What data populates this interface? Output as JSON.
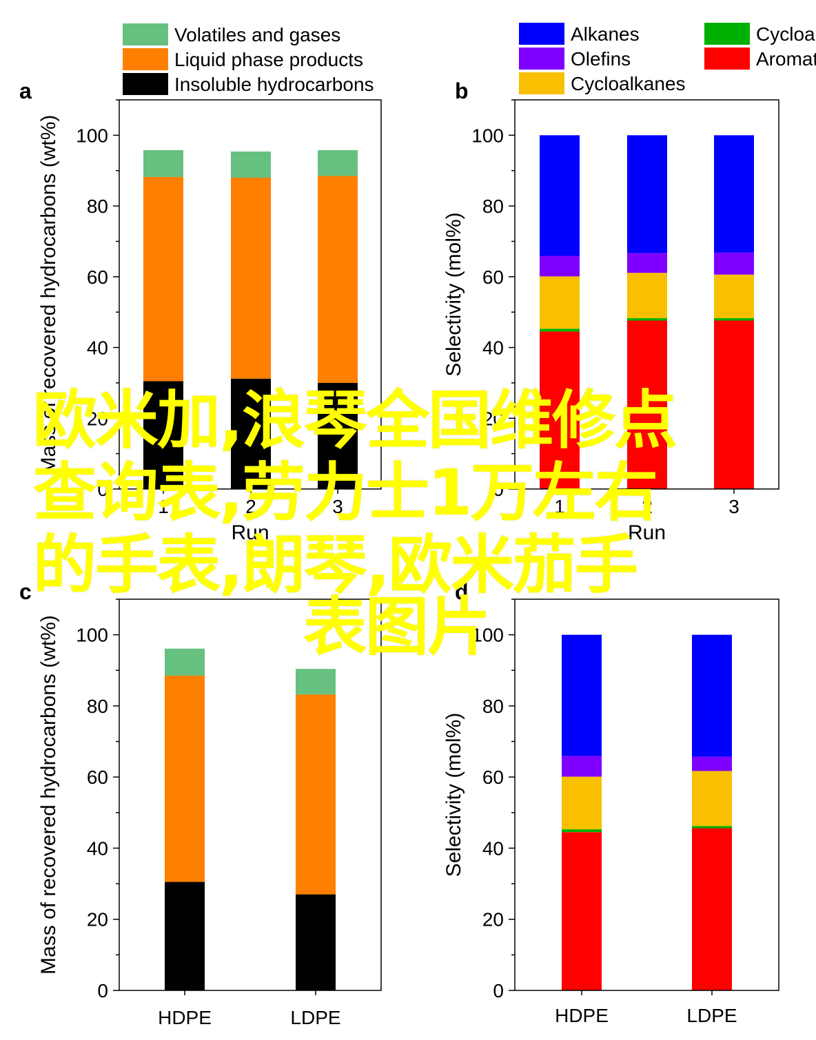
{
  "chart_data": [
    {
      "panel_label": "a",
      "type": "bar",
      "stacked": true,
      "categories": [
        "1",
        "2",
        "3"
      ],
      "xlabel": "Run",
      "ylabel": "Mass of recovered hydrocarbons (wt%)",
      "ylim": [
        0,
        110
      ],
      "yticks": [
        0,
        20,
        40,
        60,
        80,
        100
      ],
      "legend": "top",
      "series": [
        {
          "name": "Insoluble hydrocarbons",
          "color": "#000000",
          "values": [
            30.5,
            31.2,
            30.0
          ]
        },
        {
          "name": "Liquid phase products",
          "color": "#ff7f00",
          "values": [
            57.7,
            56.8,
            58.5
          ]
        },
        {
          "name": "Volatiles and gases",
          "color": "#66c080",
          "values": [
            7.6,
            7.4,
            7.3
          ]
        }
      ]
    },
    {
      "panel_label": "b",
      "type": "bar",
      "stacked": true,
      "categories": [
        "1",
        "2",
        "3"
      ],
      "xlabel": "Run",
      "ylabel": "Selectivity (mol%)",
      "ylim": [
        0,
        110
      ],
      "yticks": [
        0,
        20,
        40,
        60,
        80,
        100
      ],
      "legend": "top",
      "series": [
        {
          "name": "Aromatics",
          "color": "#ff0000",
          "values": [
            44.5,
            47.6,
            47.6
          ]
        },
        {
          "name": "Cycloalkenes",
          "color": "#00b000",
          "values": [
            0.8,
            0.7,
            0.7
          ]
        },
        {
          "name": "Cycloalkanes",
          "color": "#f8c000",
          "values": [
            14.8,
            12.8,
            12.3
          ]
        },
        {
          "name": "Olefins",
          "color": "#8000ff",
          "values": [
            5.8,
            5.6,
            6.2
          ]
        },
        {
          "name": "Alkanes",
          "color": "#0000ff",
          "values": [
            34.1,
            33.3,
            33.2
          ]
        }
      ]
    },
    {
      "panel_label": "c",
      "type": "bar",
      "stacked": true,
      "categories": [
        "HDPE",
        "LDPE"
      ],
      "xlabel": "",
      "ylabel": "Mass of recovered hydrocarbons (wt%)",
      "ylim": [
        0,
        110
      ],
      "yticks": [
        0,
        20,
        40,
        60,
        80,
        100
      ],
      "series": [
        {
          "name": "Insoluble hydrocarbons",
          "color": "#000000",
          "values": [
            30.5,
            27.0
          ]
        },
        {
          "name": "Liquid phase products",
          "color": "#ff7f00",
          "values": [
            58.0,
            56.2
          ]
        },
        {
          "name": "Volatiles and gases",
          "color": "#66c080",
          "values": [
            7.6,
            7.2
          ]
        }
      ]
    },
    {
      "panel_label": "d",
      "type": "bar",
      "stacked": true,
      "categories": [
        "HDPE",
        "LDPE"
      ],
      "xlabel": "",
      "ylabel": "Selectivity (mol%)",
      "ylim": [
        0,
        110
      ],
      "yticks": [
        0,
        20,
        40,
        60,
        80,
        100
      ],
      "series": [
        {
          "name": "Aromatics",
          "color": "#ff0000",
          "values": [
            44.5,
            45.6
          ]
        },
        {
          "name": "Cycloalkenes",
          "color": "#00b000",
          "values": [
            0.8,
            0.6
          ]
        },
        {
          "name": "Cycloalkanes",
          "color": "#f8c000",
          "values": [
            14.8,
            15.5
          ]
        },
        {
          "name": "Olefins",
          "color": "#8000ff",
          "values": [
            5.8,
            4.0
          ]
        },
        {
          "name": "Alkanes",
          "color": "#0000ff",
          "values": [
            34.1,
            34.3
          ]
        }
      ]
    }
  ],
  "legends": {
    "left": [
      {
        "label": "Volatiles and gases",
        "color": "#66c080"
      },
      {
        "label": "Liquid phase products",
        "color": "#ff7f00"
      },
      {
        "label": "Insoluble hydrocarbons",
        "color": "#000000"
      }
    ],
    "right_col1": [
      {
        "label": "Alkanes",
        "color": "#0000ff"
      },
      {
        "label": "Olefins",
        "color": "#8000ff"
      },
      {
        "label": "Cycloalkanes",
        "color": "#f8c000"
      }
    ],
    "right_col2": [
      {
        "label": "Cycloalkenes",
        "color": "#00b000"
      },
      {
        "label": "Aromatics",
        "color": "#ff0000"
      }
    ]
  },
  "overlay": {
    "line1": "欧米加,浪琴全国维修点",
    "line2": "查询表,劳力士1万左右",
    "line3": "的手表,朗琴,欧米茄手",
    "line4": "表图片",
    "color": "#ffff00"
  }
}
